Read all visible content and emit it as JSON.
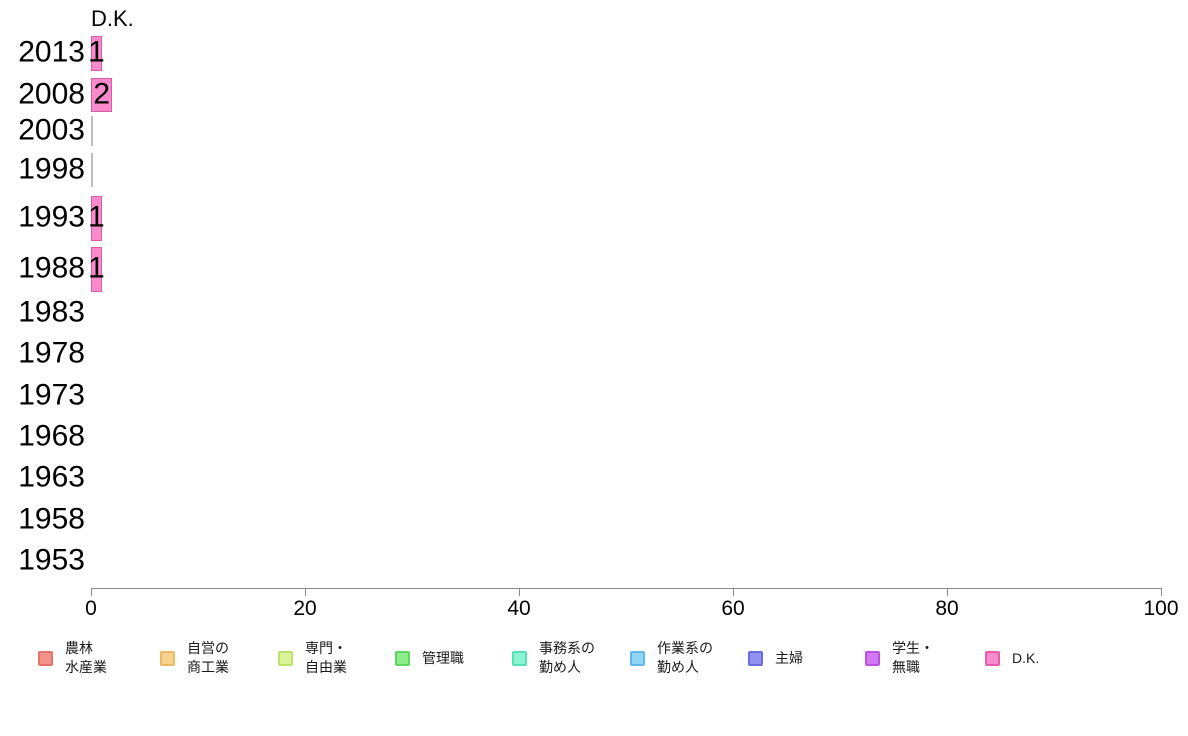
{
  "chart_data": {
    "type": "bar",
    "orientation": "horizontal",
    "title": "D.K.",
    "categories": [
      "2013",
      "2008",
      "2003",
      "1998",
      "1993",
      "1988",
      "1983",
      "1978",
      "1973",
      "1968",
      "1963",
      "1958",
      "1953"
    ],
    "values": [
      1,
      2,
      0,
      0,
      1,
      1,
      null,
      null,
      null,
      null,
      null,
      null,
      null
    ],
    "bar_labels": [
      "1",
      "2",
      "",
      "",
      "1",
      "1",
      "",
      "",
      "",
      "",
      "",
      "",
      ""
    ],
    "xlabel": "",
    "ylabel": "",
    "xlim": [
      0,
      100
    ],
    "x_ticks": [
      "0",
      "20",
      "40",
      "60",
      "80",
      "100"
    ],
    "grid": false,
    "legend_position": "bottom",
    "series_name": "D.K.",
    "series_color": "#f98bcd",
    "series_border_color": "#d65ca8",
    "zero_value_line_color": "#bdbdbd",
    "axis_color": "#8a8a8a",
    "text_color": "#000000",
    "legend": [
      {
        "lines": [
          "農林",
          "水産業"
        ],
        "color": "#f4918b",
        "border_color": "#e0756c"
      },
      {
        "lines": [
          "自営の",
          "商工業"
        ],
        "color": "#f9d18e",
        "border_color": "#eab867"
      },
      {
        "lines": [
          "専門・",
          "自由業"
        ],
        "color": "#d9f399",
        "border_color": "#bfe26a"
      },
      {
        "lines": [
          "管理職"
        ],
        "color": "#8bee8b",
        "border_color": "#5cd65c"
      },
      {
        "lines": [
          "事務系の",
          "勤め人"
        ],
        "color": "#8cf3d3",
        "border_color": "#57dfb5"
      },
      {
        "lines": [
          "作業系の",
          "勤め人"
        ],
        "color": "#90d5f5",
        "border_color": "#5fb8e8"
      },
      {
        "lines": [
          "主婦"
        ],
        "color": "#9191ef",
        "border_color": "#6c6ce0"
      },
      {
        "lines": [
          "学生・",
          "無職"
        ],
        "color": "#d378f3",
        "border_color": "#bb51e3"
      },
      {
        "lines": [
          "D.K."
        ],
        "color": "#f88bce",
        "border_color": "#e55fae"
      }
    ]
  }
}
